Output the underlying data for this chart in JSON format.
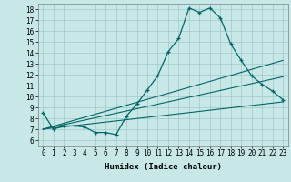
{
  "title": "",
  "xlabel": "Humidex (Indice chaleur)",
  "bg_color": "#c8e8e8",
  "grid_color": "#a0c8c8",
  "line_color": "#006868",
  "xlim": [
    -0.5,
    23.5
  ],
  "ylim": [
    5.5,
    18.5
  ],
  "xticks": [
    0,
    1,
    2,
    3,
    4,
    5,
    6,
    7,
    8,
    9,
    10,
    11,
    12,
    13,
    14,
    15,
    16,
    17,
    18,
    19,
    20,
    21,
    22,
    23
  ],
  "yticks": [
    6,
    7,
    8,
    9,
    10,
    11,
    12,
    13,
    14,
    15,
    16,
    17,
    18
  ],
  "line1_x": [
    0,
    1,
    2,
    3,
    4,
    5,
    6,
    7,
    8,
    9,
    10,
    11,
    12,
    13,
    14,
    15,
    16,
    17,
    18,
    19,
    20,
    21,
    22,
    23
  ],
  "line1_y": [
    8.5,
    7.0,
    7.3,
    7.3,
    7.2,
    6.7,
    6.7,
    6.5,
    8.2,
    9.3,
    10.6,
    11.9,
    14.1,
    15.3,
    18.1,
    17.7,
    18.1,
    17.2,
    14.8,
    13.3,
    11.9,
    11.1,
    10.5,
    9.7
  ],
  "line2_x": [
    0,
    23
  ],
  "line2_y": [
    7.0,
    9.5
  ],
  "line3_x": [
    0,
    23
  ],
  "line3_y": [
    7.0,
    11.8
  ],
  "line4_x": [
    0,
    23
  ],
  "line4_y": [
    7.0,
    13.3
  ],
  "xlabel_fontsize": 6.5,
  "tick_fontsize": 5.5
}
